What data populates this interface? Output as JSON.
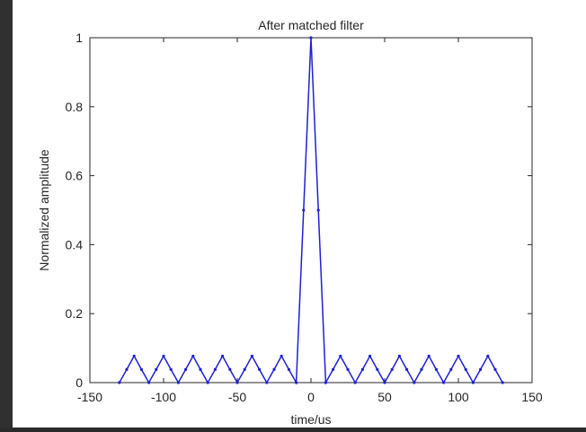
{
  "chart_data": {
    "type": "line",
    "title": "After matched filter",
    "xlabel": "time/us",
    "ylabel": "Normalized amplitude",
    "xlim": [
      -150,
      150
    ],
    "ylim": [
      0,
      1
    ],
    "xticks": [
      -150,
      -100,
      -50,
      0,
      50,
      100,
      150
    ],
    "xtick_labels": [
      "-150",
      "-100",
      "-50",
      "0",
      "50",
      "100",
      "150"
    ],
    "yticks": [
      0,
      0.2,
      0.4,
      0.6,
      0.8,
      1
    ],
    "ytick_labels": [
      "0",
      "0.2",
      "0.4",
      "0.6",
      "0.8",
      "1"
    ],
    "grid": false,
    "series": [
      {
        "color": "#1f1fd6",
        "marker": "dot",
        "x": [
          -130,
          -125,
          -120,
          -115,
          -110,
          -105,
          -100,
          -95,
          -90,
          -85,
          -80,
          -75,
          -70,
          -65,
          -60,
          -55,
          -50,
          -45,
          -40,
          -35,
          -30,
          -25,
          -20,
          -15,
          -10,
          -5,
          0,
          5,
          10,
          15,
          20,
          25,
          30,
          35,
          40,
          45,
          50,
          55,
          60,
          65,
          70,
          75,
          80,
          85,
          90,
          95,
          100,
          105,
          110,
          115,
          120,
          125,
          130
        ],
        "y": [
          0,
          0.038,
          0.077,
          0.038,
          0,
          0.038,
          0.077,
          0.038,
          0,
          0.038,
          0.077,
          0.038,
          0,
          0.038,
          0.077,
          0.038,
          0,
          0.038,
          0.077,
          0.038,
          0,
          0.038,
          0.077,
          0.038,
          0,
          0.5,
          1,
          0.5,
          0,
          0.038,
          0.077,
          0.038,
          0,
          0.038,
          0.077,
          0.038,
          0,
          0.038,
          0.077,
          0.038,
          0,
          0.038,
          0.077,
          0.038,
          0,
          0.038,
          0.077,
          0.038,
          0,
          0.038,
          0.077,
          0.038,
          0
        ]
      }
    ]
  }
}
